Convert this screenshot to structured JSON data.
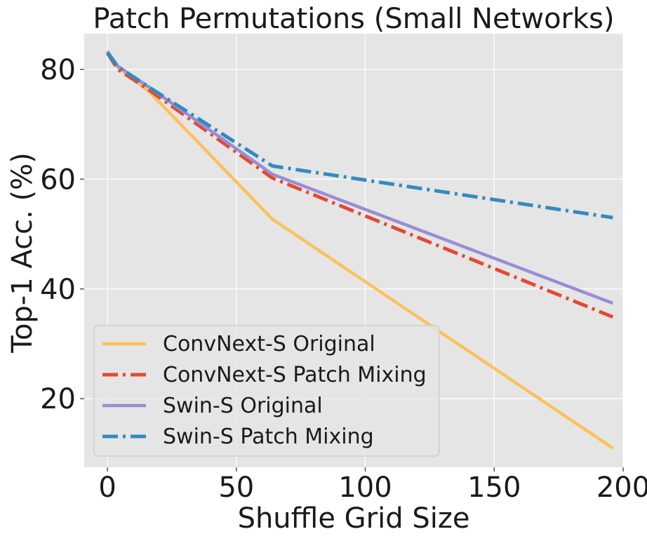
{
  "chart_data": {
    "type": "line",
    "title": "Patch Permutations (Small Networks)",
    "xlabel": "Shuffle Grid Size",
    "ylabel": "Top-1 Acc. (%)",
    "xlim": [
      -9,
      200
    ],
    "ylim": [
      7.5,
      86.5
    ],
    "xticks": [
      0,
      50,
      100,
      150,
      200
    ],
    "yticks": [
      20,
      40,
      60,
      80
    ],
    "grid": true,
    "legend_position": "lower-left",
    "series": [
      {
        "name": "ConvNext-S Original",
        "color": "#fbc15e",
        "line_style": "solid",
        "x": [
          0,
          4,
          16,
          64,
          196
        ],
        "y": [
          83.3,
          80.4,
          76.0,
          52.7,
          11.0
        ]
      },
      {
        "name": "ConvNext-S Patch Mixing",
        "color": "#e24a33",
        "line_style": "dashdot",
        "x": [
          0,
          4,
          16,
          64,
          196
        ],
        "y": [
          83.0,
          80.0,
          76.3,
          60.2,
          34.9
        ]
      },
      {
        "name": "Swin-S Original",
        "color": "#988ed5",
        "line_style": "solid",
        "x": [
          0,
          4,
          16,
          64,
          196
        ],
        "y": [
          83.3,
          80.6,
          76.8,
          60.9,
          37.4
        ]
      },
      {
        "name": "Swin-S Patch Mixing",
        "color": "#348abd",
        "line_style": "dashdot",
        "x": [
          0,
          4,
          16,
          64,
          196
        ],
        "y": [
          83.0,
          80.5,
          76.8,
          62.4,
          53.0
        ]
      }
    ]
  }
}
